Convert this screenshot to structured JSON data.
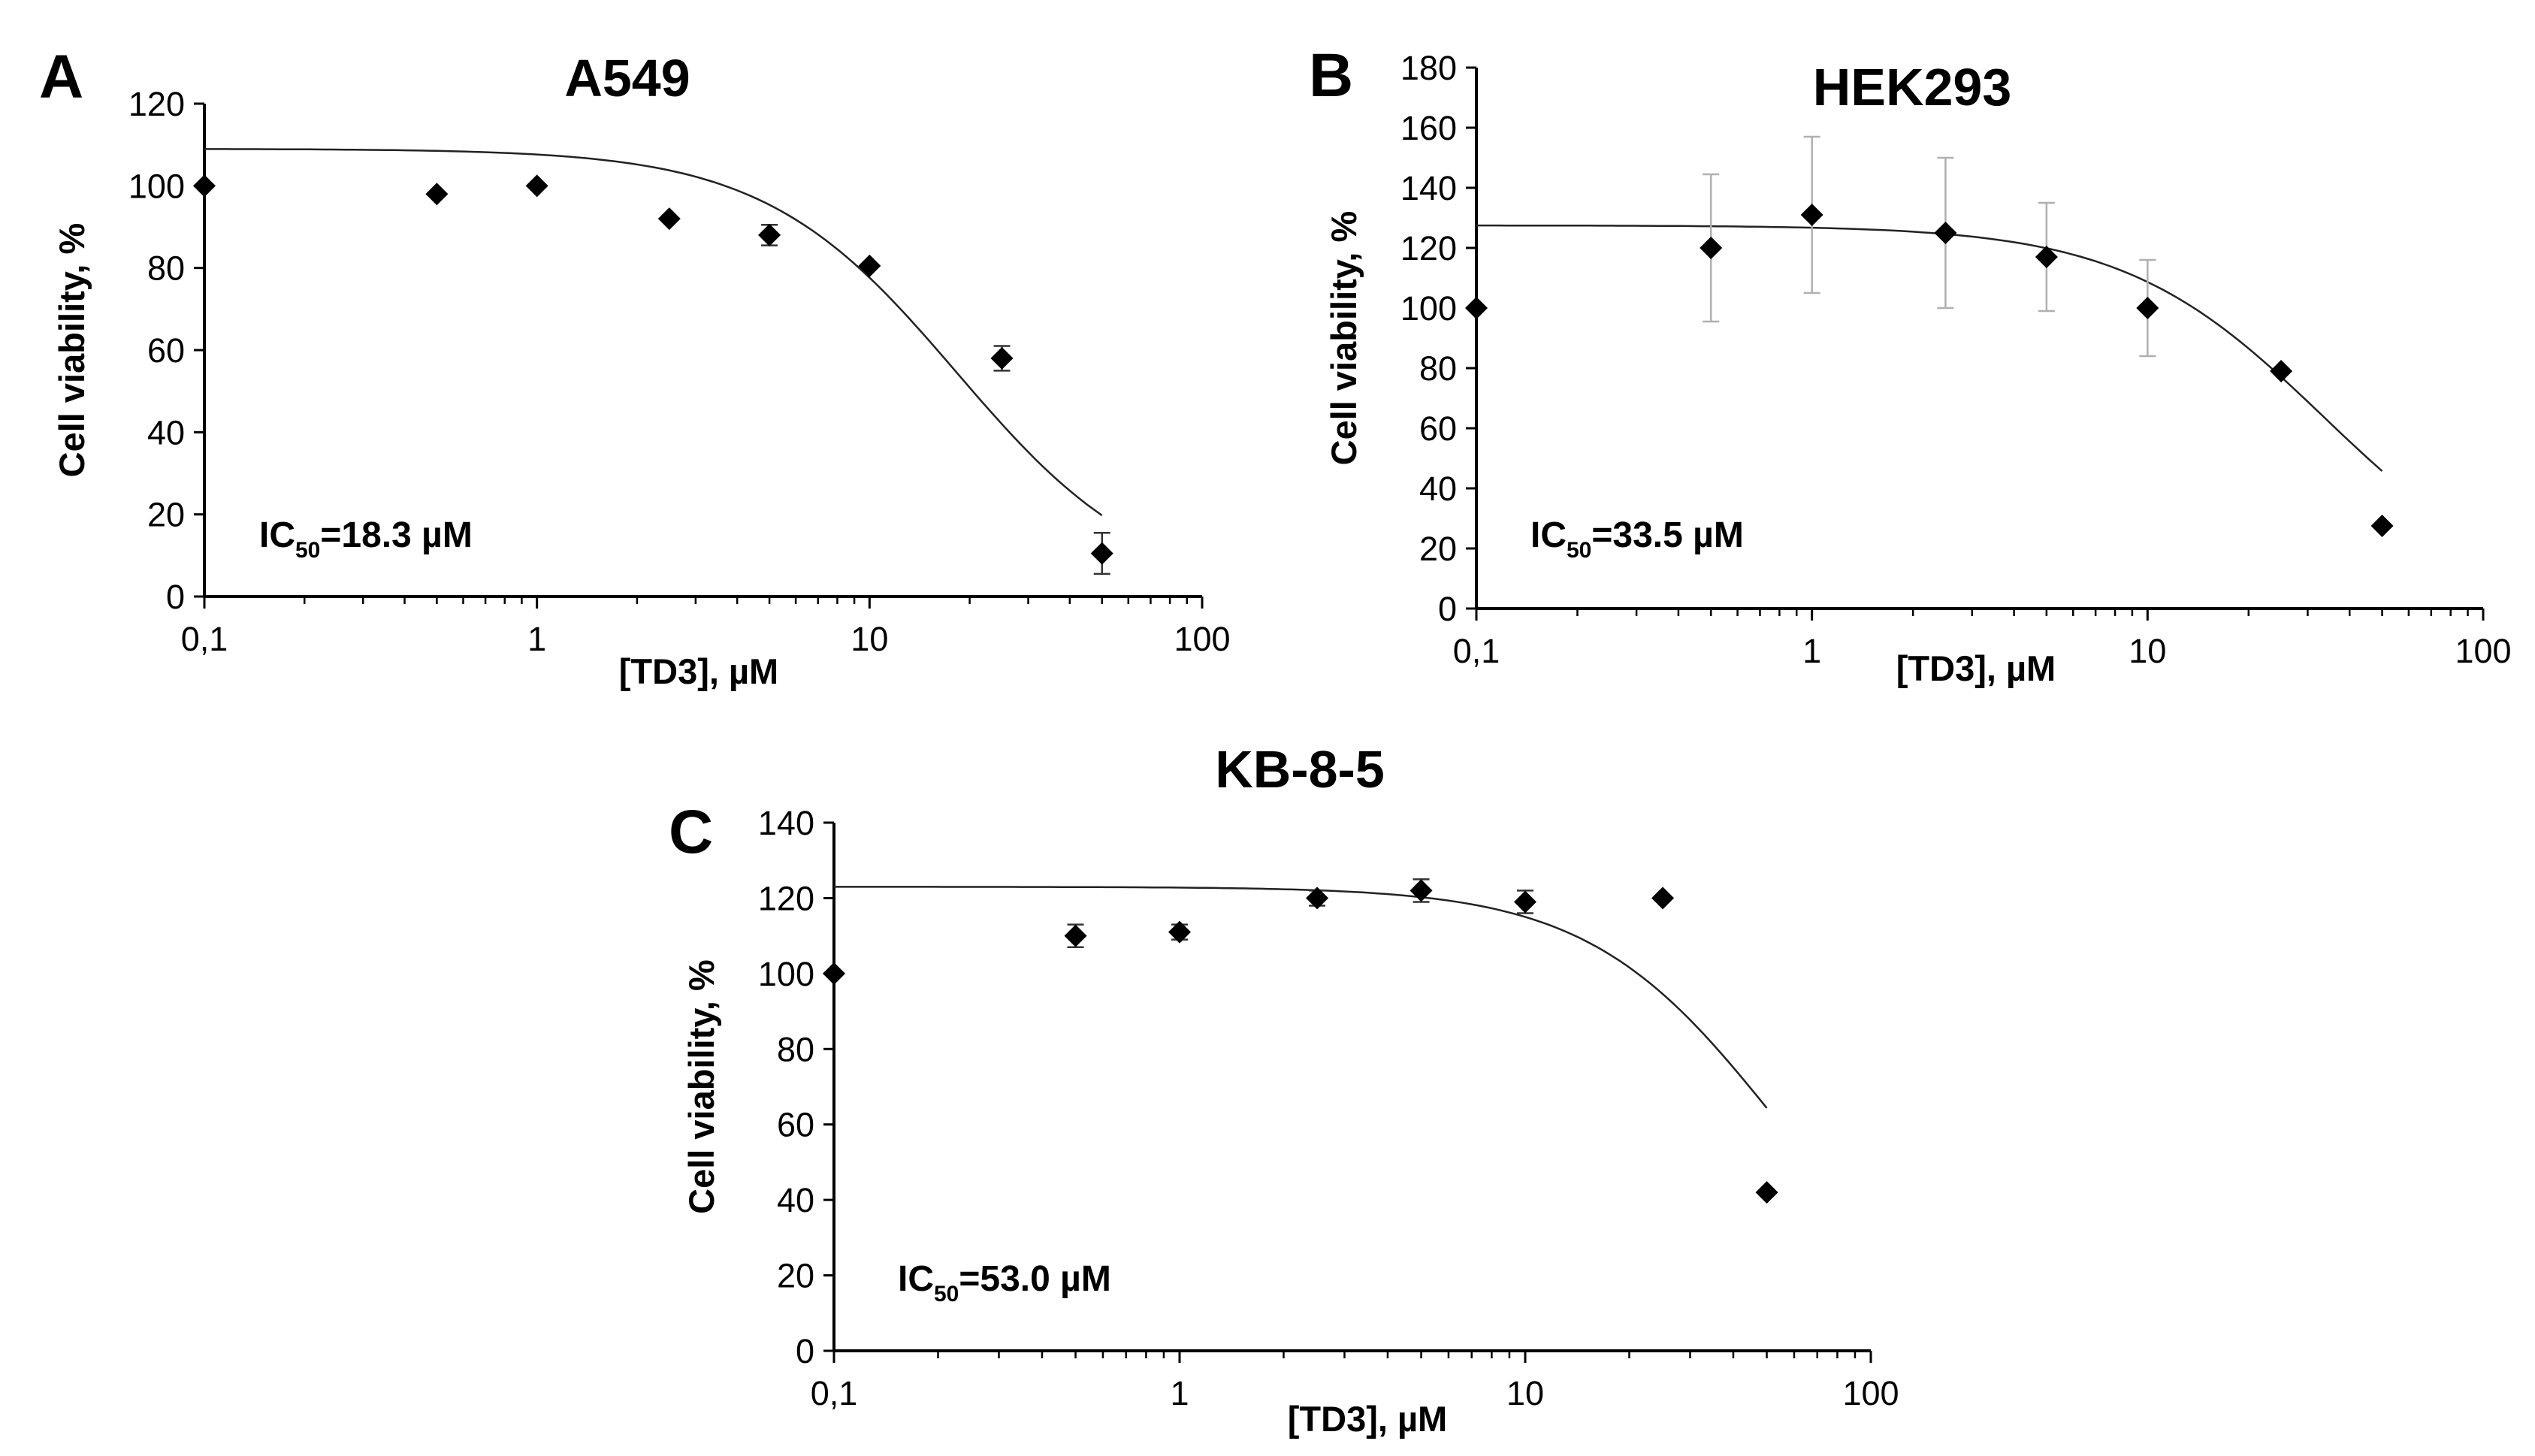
{
  "chart_data": [
    {
      "type": "scatter",
      "panel": "A",
      "title": "A549",
      "xlabel": "[TD3], µM",
      "ylabel": "Cell viability, %",
      "xscale": "log",
      "xlim": [
        0.1,
        100
      ],
      "ylim": [
        0,
        120
      ],
      "xticks": [
        "0,1",
        "1",
        "10",
        "100"
      ],
      "yticks": [
        "0",
        "20",
        "40",
        "60",
        "80",
        "100",
        "120"
      ],
      "annotation": {
        "prefix": "IC",
        "subscript": "50",
        "suffix": "=18.3 µM"
      },
      "error_bar_color": "#333333",
      "series": [
        {
          "name": "A549",
          "x": [
            0.1,
            0.5,
            1,
            2.5,
            5,
            10,
            25,
            50
          ],
          "y": [
            100,
            98,
            100,
            92,
            88,
            80.5,
            58,
            10.5
          ],
          "err": [
            0,
            0,
            0,
            0,
            2.5,
            0,
            3,
            5
          ]
        }
      ],
      "fit": {
        "top": 109,
        "bottom": 0,
        "ic50": 18.3,
        "hill": 1.5,
        "x_range": [
          0.1,
          50
        ]
      }
    },
    {
      "type": "scatter",
      "panel": "B",
      "title": "HEK293",
      "xlabel": "[TD3], µM",
      "ylabel": "Cell viability, %",
      "xscale": "log",
      "xlim": [
        0.1,
        100
      ],
      "ylim": [
        0,
        180
      ],
      "xticks": [
        "0,1",
        "1",
        "10",
        "100"
      ],
      "yticks": [
        "0",
        "20",
        "40",
        "60",
        "80",
        "100",
        "120",
        "140",
        "160",
        "180"
      ],
      "annotation": {
        "prefix": "IC",
        "subscript": "50",
        "suffix": "=33.5 µM"
      },
      "error_bar_color": "#b0b0b0",
      "series": [
        {
          "name": "HEK293",
          "x": [
            0.1,
            0.5,
            1,
            2.5,
            5,
            10,
            25,
            50
          ],
          "y": [
            100,
            120,
            131,
            125,
            117,
            100,
            79,
            27.5
          ],
          "err": [
            0,
            24.5,
            26,
            25,
            18,
            16,
            0,
            0
          ]
        }
      ],
      "fit": {
        "top": 127.5,
        "bottom": 0,
        "ic50": 33.5,
        "hill": 1.45,
        "x_range": [
          0.1,
          50
        ]
      }
    },
    {
      "type": "scatter",
      "panel": "C",
      "title": "KB-8-5",
      "xlabel": "[TD3], µM",
      "ylabel": "Cell viability, %",
      "xscale": "log",
      "xlim": [
        0.1,
        100
      ],
      "ylim": [
        0,
        140
      ],
      "xticks": [
        "0,1",
        "1",
        "10",
        "100"
      ],
      "yticks": [
        "0",
        "20",
        "40",
        "60",
        "80",
        "100",
        "120",
        "140"
      ],
      "annotation": {
        "prefix": "IC",
        "subscript": "50",
        "suffix": "=53.0 µM"
      },
      "error_bar_color": "#333333",
      "series": [
        {
          "name": "KB-8-5",
          "x": [
            0.1,
            0.5,
            1,
            2.5,
            5,
            10,
            25,
            50
          ],
          "y": [
            100,
            110,
            111,
            120,
            122,
            119,
            120,
            42
          ],
          "err": [
            0,
            3,
            2,
            2,
            3,
            3,
            0,
            0
          ]
        }
      ],
      "fit": {
        "top": 123,
        "bottom": 0,
        "ic50": 53.0,
        "hill": 1.6,
        "x_range": [
          0.1,
          50
        ]
      }
    }
  ]
}
